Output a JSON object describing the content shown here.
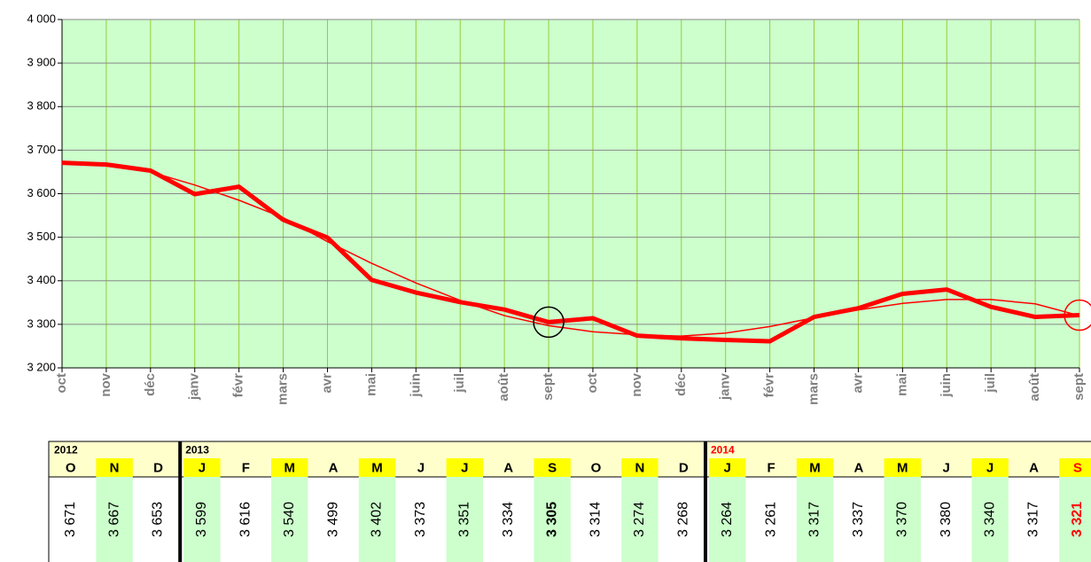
{
  "chart_data": {
    "type": "line",
    "categories": [
      "oct",
      "nov",
      "déc",
      "janv",
      "févr",
      "mars",
      "avr",
      "mai",
      "juin",
      "juil",
      "août",
      "sept",
      "oct",
      "nov",
      "déc",
      "janv",
      "févr",
      "mars",
      "avr",
      "mai",
      "juin",
      "juil",
      "août",
      "sept"
    ],
    "values": [
      3671,
      3667,
      3653,
      3599,
      3616,
      3540,
      3499,
      3402,
      3373,
      3351,
      3334,
      3305,
      3314,
      3274,
      3268,
      3264,
      3261,
      3317,
      3337,
      3370,
      3380,
      3340,
      3317,
      3321
    ],
    "value_labels": [
      "3 671",
      "3 667",
      "3 653",
      "3 599",
      "3 616",
      "3 540",
      "3 499",
      "3 402",
      "3 373",
      "3 351",
      "3 334",
      "3 305",
      "3 314",
      "3 274",
      "3 268",
      "3 264",
      "3 261",
      "3 317",
      "3 337",
      "3 370",
      "3 380",
      "3 340",
      "3 317",
      "3 321"
    ],
    "trend": [
      3672,
      3666,
      3650,
      3620,
      3585,
      3545,
      3490,
      3440,
      3395,
      3355,
      3320,
      3297,
      3283,
      3276,
      3273,
      3280,
      3295,
      3315,
      3333,
      3348,
      3357,
      3357,
      3347,
      3320
    ],
    "color": "#ff0000",
    "plot_background": "#ccffcc",
    "vgrid_color": "#99cc33",
    "grid": true,
    "ylim": [
      3200,
      4000
    ],
    "yticks": [
      {
        "value": 3200,
        "label": "3 200"
      },
      {
        "value": 3300,
        "label": "3 300"
      },
      {
        "value": 3400,
        "label": "3 400"
      },
      {
        "value": 3500,
        "label": "3 500"
      },
      {
        "value": 3600,
        "label": "3 600"
      },
      {
        "value": 3700,
        "label": "3 700"
      },
      {
        "value": 3800,
        "label": "3 800"
      },
      {
        "value": 3900,
        "label": "3 900"
      },
      {
        "value": 4000,
        "label": "4 000"
      }
    ]
  },
  "table": {
    "groups": [
      {
        "year": "2012",
        "color": "#000000",
        "months": [
          {
            "label": "O"
          },
          {
            "label": "N"
          },
          {
            "label": "D"
          }
        ]
      },
      {
        "year": "2013",
        "color": "#000000",
        "months": [
          {
            "label": "J"
          },
          {
            "label": "F"
          },
          {
            "label": "M"
          },
          {
            "label": "A"
          },
          {
            "label": "M"
          },
          {
            "label": "J"
          },
          {
            "label": "J"
          },
          {
            "label": "A"
          },
          {
            "label": "S",
            "highlight": "#000000"
          },
          {
            "label": "O"
          },
          {
            "label": "N"
          },
          {
            "label": "D"
          }
        ]
      },
      {
        "year": "2014",
        "color": "#ff0000",
        "months": [
          {
            "label": "J"
          },
          {
            "label": "F"
          },
          {
            "label": "M"
          },
          {
            "label": "A"
          },
          {
            "label": "M"
          },
          {
            "label": "J"
          },
          {
            "label": "J"
          },
          {
            "label": "A"
          },
          {
            "label": "S",
            "highlight": "#ff0000"
          }
        ]
      }
    ]
  }
}
